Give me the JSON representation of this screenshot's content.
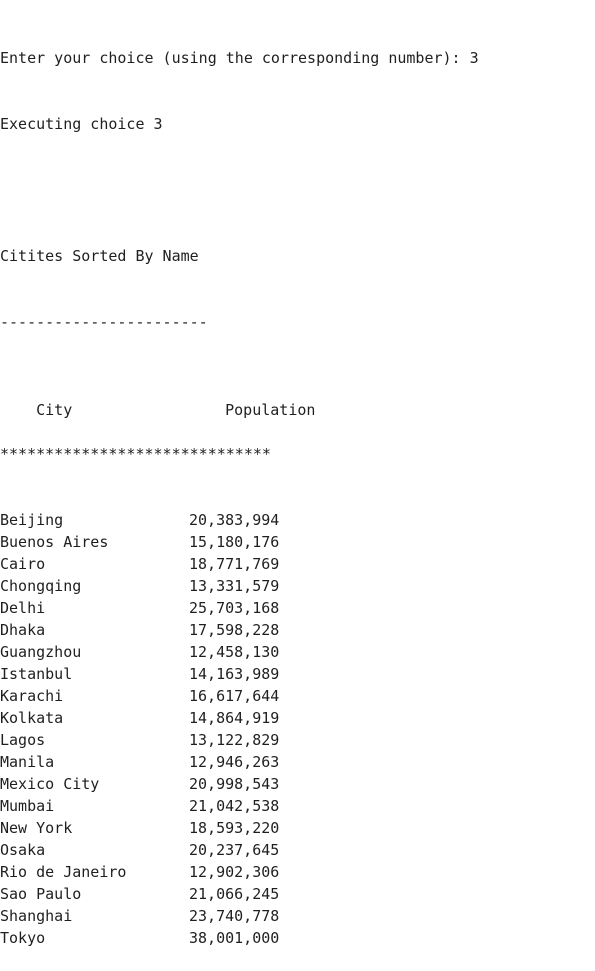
{
  "console": {
    "prompt_line": "Enter your choice (using the corresponding number): 3",
    "executing_line": "Executing choice 3",
    "section_title": "Citites Sorted By Name",
    "title_underline": "-----------------------",
    "header": {
      "city": "City",
      "population": "Population"
    },
    "header_divider": "******************************",
    "rows": [
      {
        "city": "Beijing",
        "population": "20,383,994"
      },
      {
        "city": "Buenos Aires",
        "population": "15,180,176"
      },
      {
        "city": "Cairo",
        "population": "18,771,769"
      },
      {
        "city": "Chongqing",
        "population": "13,331,579"
      },
      {
        "city": "Delhi",
        "population": "25,703,168"
      },
      {
        "city": "Dhaka",
        "population": "17,598,228"
      },
      {
        "city": "Guangzhou",
        "population": "12,458,130"
      },
      {
        "city": "Istanbul",
        "population": "14,163,989"
      },
      {
        "city": "Karachi",
        "population": "16,617,644"
      },
      {
        "city": "Kolkata",
        "population": "14,864,919"
      },
      {
        "city": "Lagos",
        "population": "13,122,829"
      },
      {
        "city": "Manila",
        "population": "12,946,263"
      },
      {
        "city": "Mexico City",
        "population": "20,998,543"
      },
      {
        "city": "Mumbai",
        "population": "21,042,538"
      },
      {
        "city": "New York",
        "population": "18,593,220"
      },
      {
        "city": "Osaka",
        "population": "20,237,645"
      },
      {
        "city": "Rio de Janeiro",
        "population": "12,902,306"
      },
      {
        "city": "Sao Paulo",
        "population": "21,066,245"
      },
      {
        "city": "Shanghai",
        "population": "23,740,778"
      },
      {
        "city": "Tokyo",
        "population": "38,001,000"
      }
    ]
  }
}
